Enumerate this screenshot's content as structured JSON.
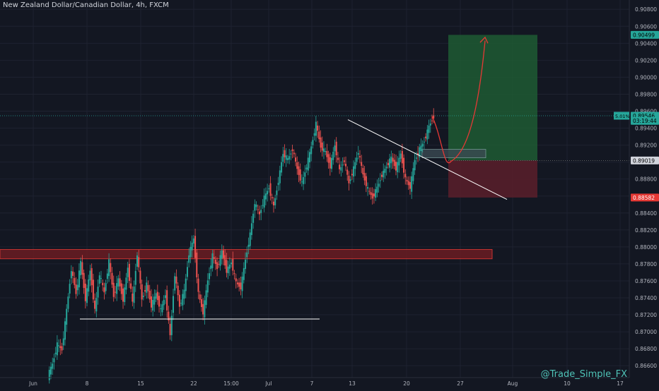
{
  "header": {
    "title": "New Zealand Dollar/Canadian Dollar, 4h, FXCM"
  },
  "watermark": "@Trade_Simple_FX",
  "colors": {
    "background": "#131722",
    "grid": "#1e2230",
    "up": "#26a69a",
    "down": "#ef5350",
    "axis_text": "#b2b5be",
    "current_price_line": "#26a69a",
    "profit_zone": "#1e5a32",
    "loss_zone": "#5a1f2a",
    "resistance_zone": "#6b1c22",
    "projection_arrow": "#e53935",
    "trendline": "#ffffff"
  },
  "chart_data": {
    "type": "candlestick",
    "symbol": "NZDCAD",
    "timeframe": "4h",
    "y_ticks": [
      0.866,
      0.868,
      0.87,
      0.872,
      0.874,
      0.876,
      0.878,
      0.88,
      0.882,
      0.884,
      0.886,
      0.888,
      0.89,
      0.892,
      0.894,
      0.896,
      0.898,
      0.9,
      0.902,
      0.904,
      0.906,
      0.908
    ],
    "y_tick_labels": [
      "0.86600",
      "0.86800",
      "0.87000",
      "0.87200",
      "0.87400",
      "0.87600",
      "0.87800",
      "0.88000",
      "0.88200",
      "0.88400",
      "0.88600",
      "0.88800",
      "0.89000",
      "0.89200",
      "0.89400",
      "0.89600",
      "0.89800",
      "0.90000",
      "0.90200",
      "0.90400",
      "0.90600",
      "0.90800"
    ],
    "ylim": [
      0.8646,
      0.9091
    ],
    "x_ticks": [
      "Jun",
      "8",
      "15",
      "22",
      "15:00",
      "Jul",
      "7",
      "13",
      "20",
      "27",
      "Aug",
      "10",
      "17"
    ],
    "price_labels": {
      "target": "0.90499",
      "current": "0.89546",
      "current_change": "5.01%",
      "countdown": "03:19:44",
      "entry": "0.89019",
      "stop": "0.88582"
    },
    "levels": {
      "target": 0.90499,
      "current": 0.89546,
      "entry": 0.89019,
      "stop": 0.88582,
      "resistance_zone": [
        0.8786,
        0.8797
      ],
      "support_line": 0.8715
    },
    "ohlc_path": [
      [
        0.8648,
        0.8662
      ],
      [
        0.8662,
        0.8685
      ],
      [
        0.8685,
        0.8679
      ],
      [
        0.8679,
        0.8726
      ],
      [
        0.8726,
        0.8774
      ],
      [
        0.8774,
        0.8745
      ],
      [
        0.8745,
        0.8782
      ],
      [
        0.8782,
        0.8738
      ],
      [
        0.8738,
        0.8772
      ],
      [
        0.8772,
        0.8725
      ],
      [
        0.8725,
        0.8768
      ],
      [
        0.8768,
        0.8746
      ],
      [
        0.8746,
        0.8783
      ],
      [
        0.8783,
        0.8742
      ],
      [
        0.8742,
        0.8762
      ],
      [
        0.8762,
        0.8738
      ],
      [
        0.8738,
        0.8776
      ],
      [
        0.8776,
        0.8734
      ],
      [
        0.8734,
        0.8792
      ],
      [
        0.8792,
        0.8738
      ],
      [
        0.8738,
        0.8756
      ],
      [
        0.8756,
        0.873
      ],
      [
        0.873,
        0.8745
      ],
      [
        0.8745,
        0.8725
      ],
      [
        0.8725,
        0.8744
      ],
      [
        0.8744,
        0.8695
      ],
      [
        0.8695,
        0.8768
      ],
      [
        0.8768,
        0.873
      ],
      [
        0.873,
        0.8748
      ],
      [
        0.8748,
        0.8792
      ],
      [
        0.8792,
        0.881
      ],
      [
        0.881,
        0.8745
      ],
      [
        0.8745,
        0.8722
      ],
      [
        0.8722,
        0.876
      ],
      [
        0.876,
        0.879
      ],
      [
        0.879,
        0.8775
      ],
      [
        0.8775,
        0.8795
      ],
      [
        0.8795,
        0.8772
      ],
      [
        0.8772,
        0.8782
      ],
      [
        0.8782,
        0.8758
      ],
      [
        0.8758,
        0.8752
      ],
      [
        0.8752,
        0.8785
      ],
      [
        0.8785,
        0.8815
      ],
      [
        0.8815,
        0.8852
      ],
      [
        0.8852,
        0.8838
      ],
      [
        0.8838,
        0.8858
      ],
      [
        0.8858,
        0.887
      ],
      [
        0.887,
        0.8848
      ],
      [
        0.8848,
        0.8878
      ],
      [
        0.8878,
        0.891
      ],
      [
        0.891,
        0.8903
      ],
      [
        0.8903,
        0.8915
      ],
      [
        0.8915,
        0.8892
      ],
      [
        0.8892,
        0.8875
      ],
      [
        0.8875,
        0.8895
      ],
      [
        0.8895,
        0.8918
      ],
      [
        0.8918,
        0.8945
      ],
      [
        0.8945,
        0.8918
      ],
      [
        0.8918,
        0.8912
      ],
      [
        0.8912,
        0.8895
      ],
      [
        0.8895,
        0.892
      ],
      [
        0.892,
        0.889
      ],
      [
        0.889,
        0.8902
      ],
      [
        0.8902,
        0.8875
      ],
      [
        0.8875,
        0.8893
      ],
      [
        0.8893,
        0.8912
      ],
      [
        0.8912,
        0.8885
      ],
      [
        0.8885,
        0.8868
      ],
      [
        0.8868,
        0.8858
      ],
      [
        0.8858,
        0.887
      ],
      [
        0.887,
        0.8885
      ],
      [
        0.8885,
        0.8895
      ],
      [
        0.8895,
        0.8905
      ],
      [
        0.8905,
        0.8892
      ],
      [
        0.8892,
        0.891
      ],
      [
        0.891,
        0.888
      ],
      [
        0.888,
        0.887
      ],
      [
        0.887,
        0.8902
      ],
      [
        0.8902,
        0.8915
      ],
      [
        0.8915,
        0.8925
      ],
      [
        0.8925,
        0.8942
      ],
      [
        0.8942,
        0.8954
      ]
    ],
    "annotations": [
      "support line under June consolidation",
      "descending trendline from 13 Jul high",
      "long position: entry 0.89019, target 0.90499, stop 0.88582",
      "projected curved path to target"
    ]
  }
}
